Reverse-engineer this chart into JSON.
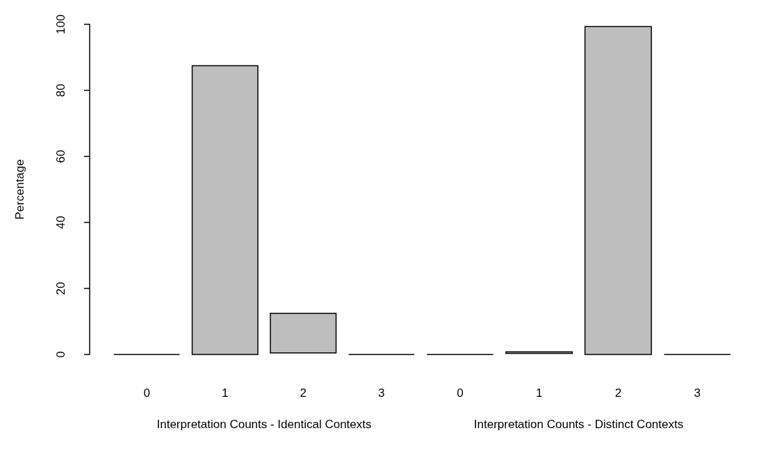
{
  "chart_data": [
    {
      "type": "bar",
      "categories": [
        "0",
        "1",
        "2",
        "3"
      ],
      "values": [
        0,
        87.5,
        12,
        0
      ],
      "base": [
        0,
        0,
        0.5,
        0
      ],
      "colors": [
        "#000000",
        "#bebebe",
        "#bebebe",
        "#000000"
      ],
      "ylim": [
        0,
        100
      ],
      "yticks": [
        0,
        20,
        40,
        60,
        80,
        100
      ],
      "xlabel": "Interpretation Counts - Identical Contexts",
      "ylabel": "Percentage"
    },
    {
      "type": "bar",
      "categories": [
        "0",
        "1",
        "2",
        "3"
      ],
      "values": [
        0,
        0.5,
        99.3,
        0
      ],
      "base": [
        0,
        0.3,
        0,
        0
      ],
      "colors": [
        "#000000",
        "#bebebe",
        "#bebebe",
        "#000000"
      ],
      "ylim": [
        0,
        100
      ],
      "yticks": [
        0,
        20,
        40,
        60,
        80,
        100
      ],
      "xlabel": "Interpretation Counts - Distinct Contexts",
      "tick_labels": "x"
    }
  ]
}
